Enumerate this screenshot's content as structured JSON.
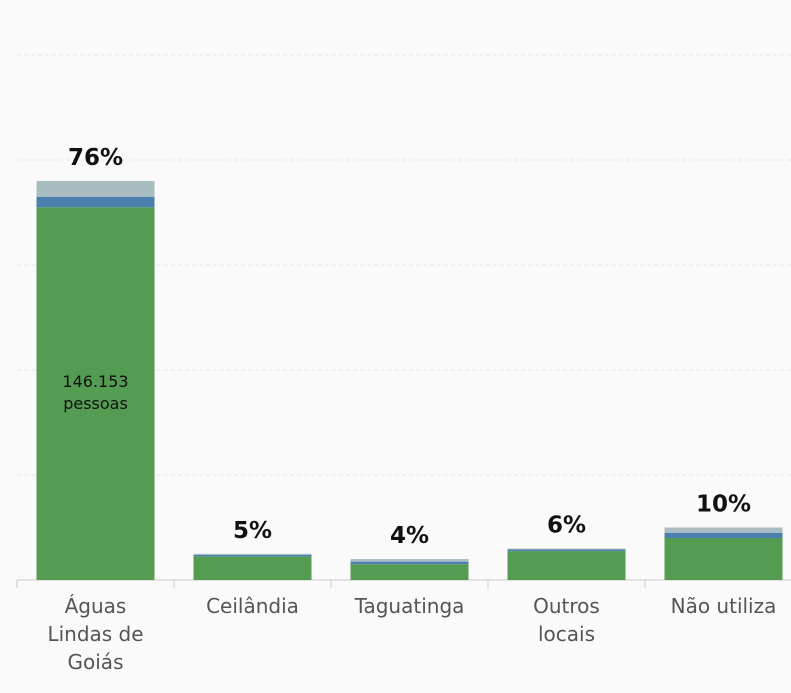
{
  "chart_data": {
    "type": "stacked_bar",
    "categories": [
      "Águas\nLindas de\nGoiás",
      "Ceilândia",
      "Taguatinga",
      "Outros\nlocais",
      "Não utiliza"
    ],
    "series": [
      {
        "color": "#559c53",
        "values": [
          71,
          4.5,
          3,
          5.5,
          8
        ]
      },
      {
        "color": "#4a7fae",
        "values": [
          2,
          0.3,
          0.5,
          0.3,
          1
        ]
      },
      {
        "color": "#a8bcc2",
        "values": [
          3,
          0.2,
          0.5,
          0.2,
          1
        ]
      }
    ],
    "totals": [
      76,
      5,
      4,
      6,
      10
    ],
    "total_labels": [
      "76%",
      "5%",
      "4%",
      "6%",
      "10%"
    ],
    "annotations": [
      {
        "category": 0,
        "text": "146.153\npessoas"
      }
    ],
    "ylim": [
      0,
      100
    ],
    "yticks": [
      0,
      20,
      40,
      60,
      80,
      100
    ],
    "grid": true
  }
}
